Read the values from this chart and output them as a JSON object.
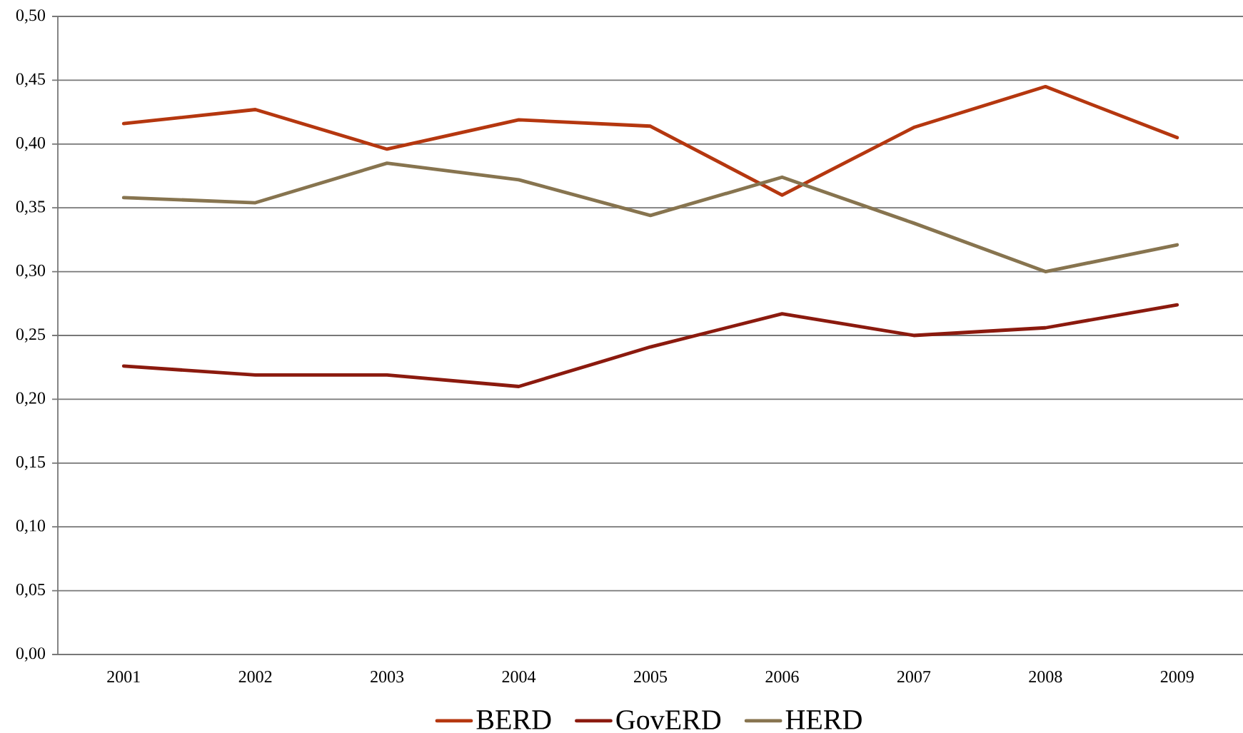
{
  "chart_data": {
    "type": "line",
    "categories": [
      "2001",
      "2002",
      "2003",
      "2004",
      "2005",
      "2006",
      "2007",
      "2008",
      "2009"
    ],
    "series": [
      {
        "name": "BERD",
        "color": "#b5370f",
        "values": [
          0.416,
          0.427,
          0.396,
          0.419,
          0.414,
          0.36,
          0.413,
          0.445,
          0.405
        ]
      },
      {
        "name": "GovERD",
        "color": "#8b1a0e",
        "values": [
          0.226,
          0.219,
          0.219,
          0.21,
          0.241,
          0.267,
          0.25,
          0.256,
          0.274
        ]
      },
      {
        "name": "HERD",
        "color": "#87744f",
        "values": [
          0.358,
          0.354,
          0.385,
          0.372,
          0.344,
          0.374,
          0.338,
          0.3,
          0.321
        ]
      }
    ],
    "ylim": [
      0,
      0.5
    ],
    "yticks": [
      {
        "value": 0,
        "label": "0,00"
      },
      {
        "value": 0.05,
        "label": "0,05"
      },
      {
        "value": 0.1,
        "label": "0,10"
      },
      {
        "value": 0.15,
        "label": "0,15"
      },
      {
        "value": 0.2,
        "label": "0,20"
      },
      {
        "value": 0.25,
        "label": "0,25"
      },
      {
        "value": 0.3,
        "label": "0,30"
      },
      {
        "value": 0.35,
        "label": "0,35"
      },
      {
        "value": 0.4,
        "label": "0,40"
      },
      {
        "value": 0.45,
        "label": "0,45"
      },
      {
        "value": 0.5,
        "label": "0,50"
      }
    ],
    "grid": "y",
    "legend": "bottom",
    "line_style": "solid"
  }
}
